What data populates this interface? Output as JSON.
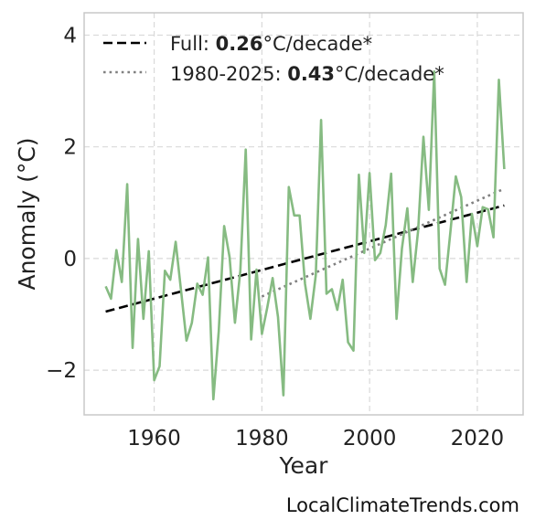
{
  "chart_data": {
    "type": "line",
    "xlabel": "Year",
    "ylabel": "Anomaly (°C)",
    "xlim": [
      1947,
      2028.5
    ],
    "ylim": [
      -2.8,
      4.4
    ],
    "xticks": [
      1960,
      1980,
      2000,
      2020
    ],
    "yticks": [
      -2,
      0,
      2,
      4
    ],
    "ytick_labels": [
      "−2",
      "0",
      "2",
      "4"
    ],
    "grid": true,
    "legend_position": "top-left",
    "colors": {
      "data": "#86bb82",
      "full_trend": "#000000",
      "recent_trend": "#808080",
      "grid": "#d9d9d9",
      "frame": "#c8c8c8"
    },
    "series": [
      {
        "x": [
          1951,
          1952,
          1953,
          1954,
          1955,
          1956,
          1957,
          1958,
          1959,
          1960,
          1961,
          1962,
          1963,
          1964,
          1965,
          1966,
          1967,
          1968,
          1969,
          1970,
          1971,
          1972,
          1973,
          1974,
          1975,
          1976,
          1977,
          1978,
          1979,
          1980,
          1981,
          1982,
          1983,
          1984,
          1985,
          1986,
          1987,
          1988,
          1989,
          1990,
          1991,
          1992,
          1993,
          1994,
          1995,
          1996,
          1997,
          1998,
          1999,
          2000,
          2001,
          2002,
          2003,
          2004,
          2005,
          2006,
          2007,
          2008,
          2009,
          2010,
          2011,
          2012,
          2013,
          2014,
          2015,
          2016,
          2017,
          2018,
          2019,
          2020,
          2021,
          2022,
          2023,
          2024,
          2025
        ],
        "values": [
          -0.5,
          -0.72,
          0.15,
          -0.42,
          1.33,
          -1.6,
          0.35,
          -1.08,
          0.13,
          -2.18,
          -1.93,
          -0.22,
          -0.38,
          0.3,
          -0.58,
          -1.47,
          -1.15,
          -0.45,
          -0.65,
          0.02,
          -2.52,
          -1.3,
          0.58,
          0.03,
          -1.15,
          -0.22,
          1.95,
          -1.45,
          -0.2,
          -1.35,
          -0.88,
          -0.35,
          -1.05,
          -2.45,
          1.28,
          0.77,
          0.77,
          -0.45,
          -1.08,
          -0.3,
          2.48,
          -0.63,
          -0.55,
          -0.92,
          -0.38,
          -1.5,
          -1.65,
          1.5,
          0.1,
          1.53,
          -0.03,
          0.1,
          0.6,
          1.52,
          -1.08,
          0.18,
          0.9,
          -0.42,
          0.5,
          2.18,
          0.87,
          3.35,
          -0.18,
          -0.47,
          0.48,
          1.47,
          1.1,
          -0.42,
          0.8,
          0.22,
          0.92,
          0.88,
          0.38,
          3.2,
          1.6
        ]
      },
      {
        "name": "Full",
        "x": [
          1951,
          2025
        ],
        "values": [
          -0.95,
          0.95
        ],
        "style": "dashed"
      },
      {
        "name": "1980-2025",
        "x": [
          1980,
          2025
        ],
        "values": [
          -0.68,
          1.25
        ],
        "style": "dotted"
      }
    ],
    "legend": [
      {
        "prefix": "Full: ",
        "value": "0.26",
        "suffix": "°C/decade*"
      },
      {
        "prefix": "1980-2025: ",
        "value": "0.43",
        "suffix": "°C/decade*"
      }
    ],
    "source": "LocalClimateTrends.com"
  }
}
